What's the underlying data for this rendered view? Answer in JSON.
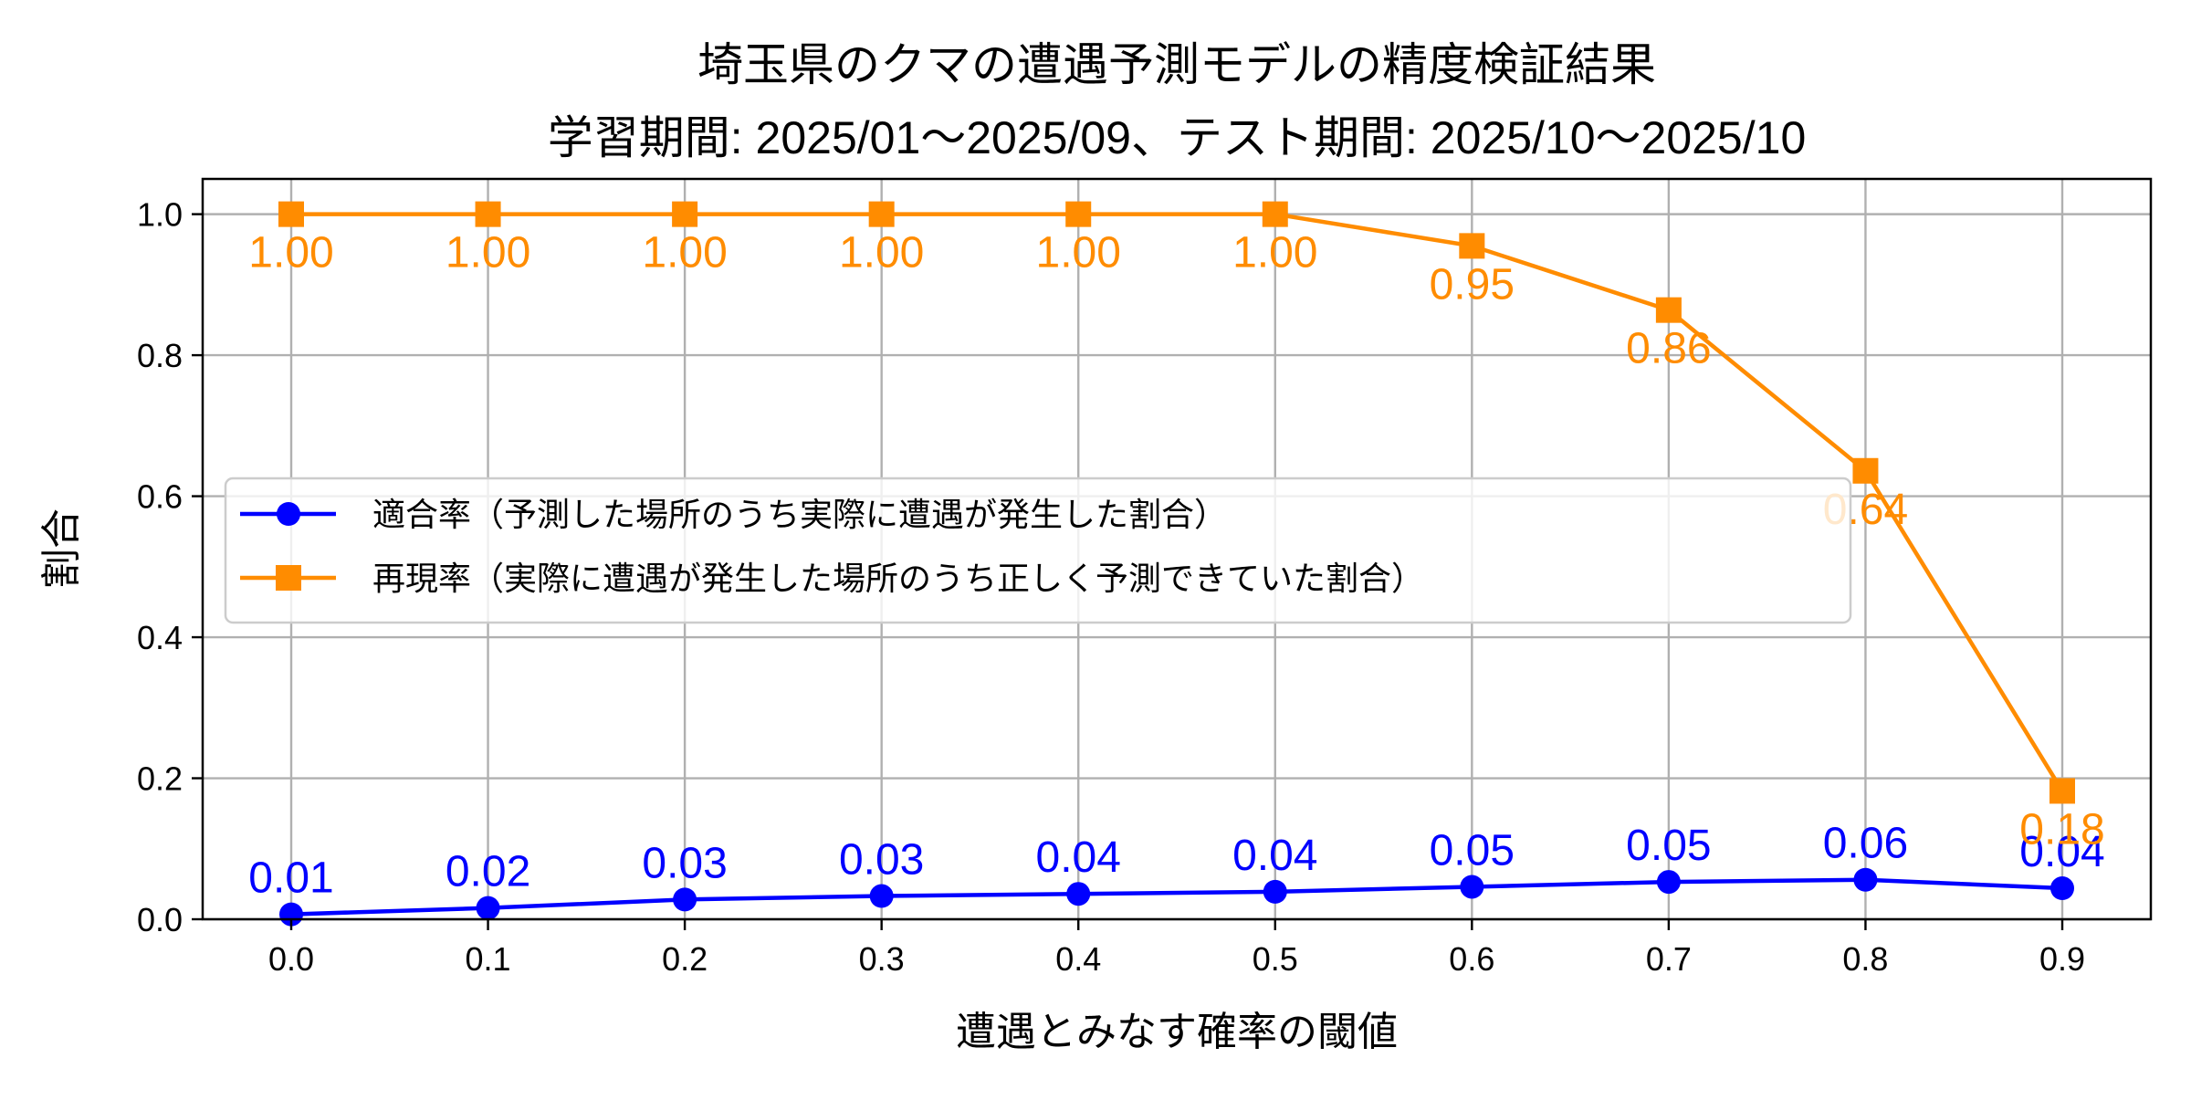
{
  "chart_data": {
    "type": "line",
    "title": "埼玉県のクマの遭遇予測モデルの精度検証結果",
    "subtitle": "学習期間: 2025/01〜2025/09、テスト期間: 2025/10〜2025/10",
    "xlabel": "遭遇とみなす確率の閾値",
    "ylabel": "割合",
    "x": [
      0.0,
      0.1,
      0.2,
      0.3,
      0.4,
      0.5,
      0.6,
      0.7,
      0.8,
      0.9
    ],
    "xticks": [
      "0.0",
      "0.1",
      "0.2",
      "0.3",
      "0.4",
      "0.5",
      "0.6",
      "0.7",
      "0.8",
      "0.9"
    ],
    "yticks": [
      "0.0",
      "0.2",
      "0.4",
      "0.6",
      "0.8",
      "1.0"
    ],
    "xlim": [
      -0.045,
      0.945
    ],
    "ylim": [
      0.0,
      1.05
    ],
    "grid": true,
    "legend_position": "center left",
    "series": [
      {
        "name": "適合率（予測した場所のうち実際に遭遇が発生した割合）",
        "color": "#0000FF",
        "marker": "circle",
        "values": [
          0.007,
          0.016,
          0.028,
          0.033,
          0.036,
          0.039,
          0.046,
          0.053,
          0.056,
          0.044
        ],
        "labels": [
          "0.01",
          "0.02",
          "0.03",
          "0.03",
          "0.04",
          "0.04",
          "0.05",
          "0.05",
          "0.06",
          "0.04"
        ],
        "label_position": "above"
      },
      {
        "name": "再現率（実際に遭遇が発生した場所のうち正しく予測できていた割合）",
        "color": "#FF8C00",
        "marker": "square",
        "values": [
          1.0,
          1.0,
          1.0,
          1.0,
          1.0,
          1.0,
          0.955,
          0.864,
          0.636,
          0.182
        ],
        "labels": [
          "1.00",
          "1.00",
          "1.00",
          "1.00",
          "1.00",
          "1.00",
          "0.95",
          "0.86",
          "0.64",
          "0.18"
        ],
        "label_position": "below"
      }
    ]
  }
}
